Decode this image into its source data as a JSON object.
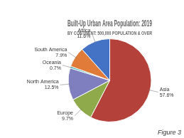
{
  "chart_data": {
    "type": "pie",
    "title": "Built-Up Urban Area Population: 2019",
    "subtitle": "BY CONTINENT: 500,000 POPULATION & OVER",
    "annotations": [
      "Figure 3"
    ],
    "categories": [
      "Asia",
      "Europe",
      "North America",
      "Oceania",
      "South America",
      "Africa"
    ],
    "values": [
      57.6,
      9.7,
      12.5,
      0.7,
      7.9,
      11.6
    ],
    "value_labels": [
      "57.6%",
      "9.7%",
      "12.5%",
      "0.7%",
      "7.9%",
      "11.6%"
    ],
    "colors": [
      "#b5413b",
      "#8faa4b",
      "#7f7fbf",
      "#3aafb0",
      "#e07b39",
      "#4472c4"
    ],
    "data_labels": true
  }
}
